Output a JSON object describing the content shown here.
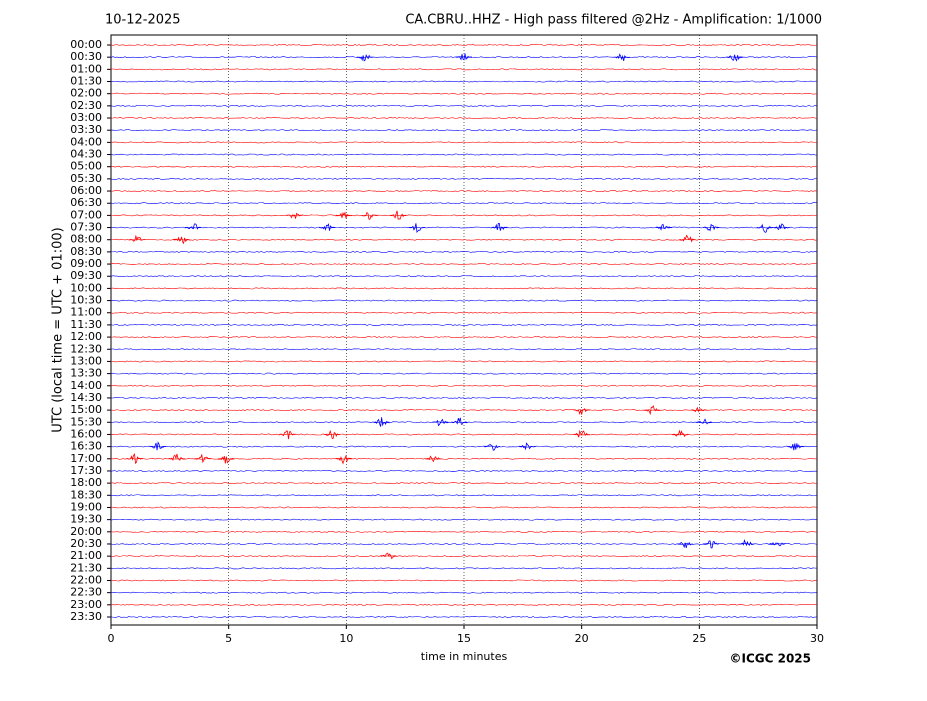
{
  "chart_data": {
    "type": "helicorder",
    "title_left": "10-12-2025",
    "title": "CA.CBRU..HHZ - High pass filtered @2Hz - Amplification: 1/1000",
    "ylabel": "UTC (local time = UTC + 01:00)",
    "xlabel": "time in minutes",
    "credit": "©ICGC 2025",
    "categories": [
      "00:00",
      "00:30",
      "01:00",
      "01:30",
      "02:00",
      "02:30",
      "03:00",
      "03:30",
      "04:00",
      "04:30",
      "05:00",
      "05:30",
      "06:00",
      "06:30",
      "07:00",
      "07:30",
      "08:00",
      "08:30",
      "09:00",
      "09:30",
      "10:00",
      "10:30",
      "11:00",
      "11:30",
      "12:00",
      "12:30",
      "13:00",
      "13:30",
      "14:00",
      "14:30",
      "15:00",
      "15:30",
      "16:00",
      "16:30",
      "17:00",
      "17:30",
      "18:00",
      "18:30",
      "19:00",
      "19:30",
      "20:00",
      "20:30",
      "21:00",
      "21:30",
      "22:00",
      "22:30",
      "23:00",
      "23:30"
    ],
    "colors": [
      "red",
      "blue"
    ],
    "xlim": [
      0,
      30
    ],
    "xticks": [
      0,
      5,
      10,
      15,
      20,
      25,
      30
    ],
    "grid": true,
    "bursts": [
      {
        "row": "00:30",
        "x": [
          10.8,
          15,
          21.7,
          26.5
        ]
      },
      {
        "row": "07:00",
        "x": [
          7.8,
          9.9,
          11,
          12.2
        ]
      },
      {
        "row": "07:30",
        "x": [
          3.5,
          9.2,
          13,
          16.5,
          23.5,
          25.5,
          27.8,
          28.5
        ]
      },
      {
        "row": "08:00",
        "x": [
          1.1,
          3,
          24.5
        ]
      },
      {
        "row": "15:00",
        "x": [
          20,
          23,
          25
        ]
      },
      {
        "row": "15:30",
        "x": [
          11.5,
          14,
          14.8,
          25.2
        ]
      },
      {
        "row": "16:00",
        "x": [
          7.5,
          9.4,
          20,
          24.2
        ]
      },
      {
        "row": "16:30",
        "x": [
          2,
          16.2,
          17.7,
          29.1
        ]
      },
      {
        "row": "17:00",
        "x": [
          1,
          2.8,
          3.9,
          4.9,
          9.9,
          13.7
        ]
      },
      {
        "row": "20:30",
        "x": [
          24.4,
          25.5,
          27,
          28.3
        ]
      },
      {
        "row": "21:00",
        "x": [
          11.8
        ]
      }
    ]
  }
}
